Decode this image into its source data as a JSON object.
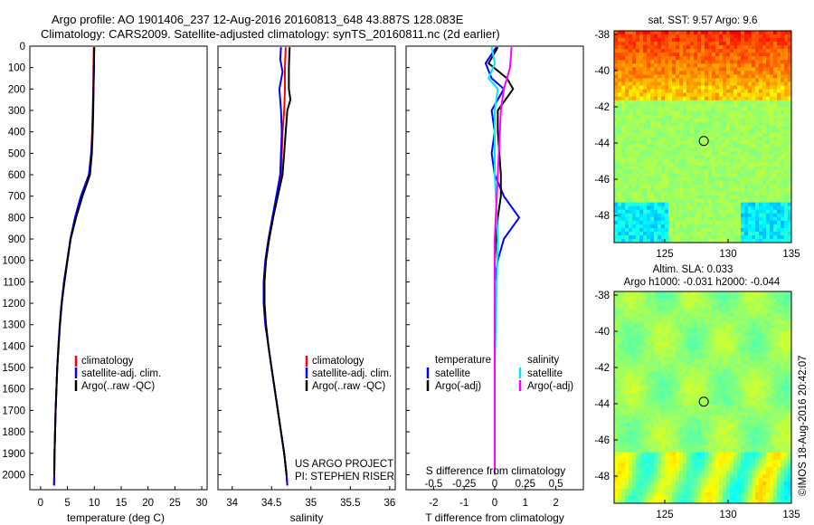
{
  "header": {
    "line1": "Argo profile: AO 1901406_237 12-Aug-2016 20160813_648 43.887S 128.083E",
    "line2": "Climatology: CARS2009. Satellite-adjusted climatology: synTS_20160811.nc (2d earlier)"
  },
  "colors": {
    "climatology": "#ff0000",
    "satellite": "#0000ff",
    "argo": "#000000",
    "sal_satellite": "#00e6ff",
    "sal_argo": "#ff00ff"
  },
  "chart_data": [
    {
      "id": "temperature",
      "type": "line",
      "xlabel": "temperature (deg C)",
      "xticks": [
        0,
        5,
        10,
        15,
        20,
        25,
        30
      ],
      "xlim": [
        -2,
        31
      ],
      "ylim": [
        2070,
        0
      ],
      "yticks": [
        0,
        100,
        200,
        300,
        400,
        500,
        600,
        700,
        800,
        900,
        1000,
        1100,
        1200,
        1300,
        1400,
        1500,
        1600,
        1700,
        1800,
        1900,
        2000
      ],
      "legend": [
        "climatology",
        "satellite-adj. clim.",
        "Argo(..raw -QC)"
      ],
      "series": [
        {
          "key": "climatology",
          "color_key": "climatology",
          "points": [
            [
              9.9,
              5
            ],
            [
              9.85,
              100
            ],
            [
              9.8,
              200
            ],
            [
              9.7,
              300
            ],
            [
              9.6,
              400
            ],
            [
              9.4,
              500
            ],
            [
              9.0,
              600
            ],
            [
              7.6,
              700
            ],
            [
              6.5,
              800
            ],
            [
              5.6,
              900
            ],
            [
              5.0,
              1000
            ],
            [
              4.4,
              1100
            ],
            [
              3.95,
              1200
            ],
            [
              3.6,
              1300
            ],
            [
              3.35,
              1400
            ],
            [
              3.1,
              1500
            ],
            [
              2.95,
              1600
            ],
            [
              2.8,
              1700
            ],
            [
              2.7,
              1800
            ],
            [
              2.6,
              1900
            ],
            [
              2.55,
              2000
            ],
            [
              2.5,
              2050
            ]
          ]
        },
        {
          "key": "satellite",
          "color_key": "satellite",
          "points": [
            [
              9.95,
              5
            ],
            [
              9.95,
              100
            ],
            [
              9.85,
              200
            ],
            [
              9.75,
              300
            ],
            [
              9.65,
              400
            ],
            [
              9.45,
              500
            ],
            [
              9.0,
              600
            ],
            [
              7.5,
              700
            ],
            [
              6.4,
              800
            ],
            [
              5.55,
              900
            ],
            [
              4.95,
              1000
            ],
            [
              4.35,
              1100
            ],
            [
              3.9,
              1200
            ],
            [
              3.55,
              1300
            ],
            [
              3.3,
              1400
            ],
            [
              3.1,
              1500
            ],
            [
              2.95,
              1600
            ],
            [
              2.8,
              1700
            ],
            [
              2.7,
              1800
            ],
            [
              2.6,
              1900
            ],
            [
              2.55,
              2000
            ],
            [
              2.5,
              2050
            ]
          ]
        },
        {
          "key": "argo",
          "color_key": "argo",
          "points": [
            [
              10.0,
              5
            ],
            [
              9.9,
              100
            ],
            [
              9.85,
              200
            ],
            [
              9.8,
              300
            ],
            [
              9.7,
              400
            ],
            [
              9.55,
              500
            ],
            [
              9.2,
              600
            ],
            [
              7.8,
              700
            ],
            [
              6.6,
              800
            ],
            [
              5.6,
              900
            ],
            [
              5.0,
              1000
            ],
            [
              4.45,
              1100
            ],
            [
              3.95,
              1200
            ],
            [
              3.6,
              1300
            ],
            [
              3.35,
              1400
            ],
            [
              3.1,
              1500
            ],
            [
              2.95,
              1600
            ],
            [
              2.8,
              1700
            ],
            [
              2.7,
              1800
            ],
            [
              2.6,
              1900
            ],
            [
              2.55,
              2000
            ]
          ]
        }
      ]
    },
    {
      "id": "salinity",
      "type": "line",
      "xlabel": "salinity",
      "xticks": [
        34,
        34.5,
        35,
        35.5,
        36
      ],
      "xlim": [
        33.82,
        36.07
      ],
      "ylim": [
        2070,
        0
      ],
      "legend": [
        "climatology",
        "satellite-adj. clim.",
        "Argo(..raw -QC)"
      ],
      "annotation": [
        "US ARGO PROJECT",
        "PI: STEPHEN RISER"
      ],
      "series": [
        {
          "key": "climatology",
          "color_key": "climatology",
          "points": [
            [
              34.68,
              5
            ],
            [
              34.67,
              100
            ],
            [
              34.67,
              200
            ],
            [
              34.66,
              300
            ],
            [
              34.64,
              400
            ],
            [
              34.63,
              500
            ],
            [
              34.62,
              600
            ],
            [
              34.57,
              700
            ],
            [
              34.52,
              800
            ],
            [
              34.47,
              900
            ],
            [
              34.43,
              1000
            ],
            [
              34.41,
              1100
            ],
            [
              34.41,
              1200
            ],
            [
              34.43,
              1300
            ],
            [
              34.46,
              1400
            ],
            [
              34.5,
              1500
            ],
            [
              34.54,
              1600
            ],
            [
              34.58,
              1700
            ],
            [
              34.62,
              1800
            ],
            [
              34.66,
              1900
            ],
            [
              34.69,
              2000
            ],
            [
              34.7,
              2050
            ]
          ]
        },
        {
          "key": "satellite",
          "color_key": "satellite",
          "points": [
            [
              34.62,
              5
            ],
            [
              34.61,
              60
            ],
            [
              34.64,
              120
            ],
            [
              34.6,
              200
            ],
            [
              34.62,
              300
            ],
            [
              34.63,
              400
            ],
            [
              34.62,
              500
            ],
            [
              34.61,
              600
            ],
            [
              34.56,
              700
            ],
            [
              34.51,
              800
            ],
            [
              34.46,
              900
            ],
            [
              34.42,
              1000
            ],
            [
              34.4,
              1100
            ],
            [
              34.4,
              1200
            ],
            [
              34.42,
              1300
            ],
            [
              34.46,
              1400
            ],
            [
              34.5,
              1500
            ],
            [
              34.54,
              1600
            ],
            [
              34.58,
              1700
            ],
            [
              34.62,
              1800
            ],
            [
              34.66,
              1900
            ],
            [
              34.69,
              2000
            ],
            [
              34.7,
              2050
            ]
          ]
        },
        {
          "key": "argo",
          "color_key": "argo",
          "points": [
            [
              34.73,
              5
            ],
            [
              34.72,
              100
            ],
            [
              34.72,
              200
            ],
            [
              34.74,
              250
            ],
            [
              34.7,
              300
            ],
            [
              34.68,
              400
            ],
            [
              34.66,
              500
            ],
            [
              34.64,
              600
            ],
            [
              34.58,
              700
            ],
            [
              34.52,
              800
            ],
            [
              34.47,
              900
            ],
            [
              34.43,
              1000
            ],
            [
              34.41,
              1100
            ],
            [
              34.41,
              1200
            ],
            [
              34.43,
              1300
            ],
            [
              34.46,
              1400
            ],
            [
              34.5,
              1500
            ],
            [
              34.54,
              1600
            ],
            [
              34.58,
              1700
            ],
            [
              34.62,
              1800
            ],
            [
              34.66,
              1900
            ],
            [
              34.69,
              2000
            ]
          ]
        }
      ]
    },
    {
      "id": "difference",
      "type": "line",
      "xlabel": "T difference from climatology",
      "xlabel_top": "S difference from climatology",
      "xticks": [
        -2,
        -1,
        0,
        1,
        2
      ],
      "xticks_top": [
        "-0.5",
        "-0.25",
        "0",
        "0.25",
        "0.5"
      ],
      "xlim": [
        -2.9,
        2.9
      ],
      "ylim": [
        2070,
        0
      ],
      "legend_temp_title": "temperature",
      "legend_sal_title": "salinity",
      "legend_temp": [
        "satellite",
        "Argo(-adj)"
      ],
      "legend_sal": [
        "satellite",
        "Argo(-adj)"
      ],
      "series": [
        {
          "key": "t_satellite",
          "color_key": "satellite",
          "points": [
            [
              0.05,
              5
            ],
            [
              -0.3,
              80
            ],
            [
              -0.1,
              150
            ],
            [
              0.3,
              200
            ],
            [
              -0.1,
              300
            ],
            [
              0.0,
              400
            ],
            [
              -0.1,
              500
            ],
            [
              0.0,
              600
            ],
            [
              0.3,
              700
            ],
            [
              0.8,
              800
            ],
            [
              0.3,
              900
            ],
            [
              0.1,
              1000
            ],
            [
              0.0,
              1100
            ],
            [
              0.0,
              1200
            ],
            [
              0.0,
              1500
            ],
            [
              0.0,
              2000
            ]
          ]
        },
        {
          "key": "t_argo",
          "color_key": "argo",
          "points": [
            [
              0.1,
              5
            ],
            [
              -0.2,
              80
            ],
            [
              0.4,
              150
            ],
            [
              0.6,
              200
            ],
            [
              0.1,
              300
            ],
            [
              0.1,
              400
            ],
            [
              0.15,
              500
            ],
            [
              0.2,
              600
            ],
            [
              0.2,
              700
            ],
            [
              0.1,
              800
            ],
            [
              0.05,
              900
            ],
            [
              0.0,
              1000
            ],
            [
              0.0,
              1200
            ],
            [
              0.0,
              1500
            ],
            [
              0.0,
              2000
            ]
          ]
        },
        {
          "key": "s_satellite",
          "color_key": "sal_satellite",
          "points": [
            [
              -0.1,
              5
            ],
            [
              0.0,
              80
            ],
            [
              -0.2,
              150
            ],
            [
              0.1,
              200
            ],
            [
              0.0,
              300
            ],
            [
              0.0,
              600
            ],
            [
              0.1,
              900
            ],
            [
              0.05,
              1200
            ],
            [
              0.0,
              1500
            ],
            [
              0.0,
              2000
            ]
          ]
        },
        {
          "key": "s_argo",
          "color_key": "sal_argo",
          "points": [
            [
              0.55,
              5
            ],
            [
              0.5,
              100
            ],
            [
              0.3,
              200
            ],
            [
              0.2,
              300
            ],
            [
              0.1,
              600
            ],
            [
              0.0,
              900
            ],
            [
              0.0,
              1200
            ],
            [
              0.0,
              1500
            ],
            [
              0.0,
              2000
            ]
          ]
        }
      ]
    },
    {
      "id": "sst_map",
      "type": "heatmap",
      "title": "sat. SST: 9.57 Argo: 9.6",
      "xticks": [
        125,
        130,
        135
      ],
      "yticks": [
        -38,
        -40,
        -42,
        -44,
        -46,
        -48
      ],
      "xlim": [
        121,
        135
      ],
      "ylim": [
        -49.5,
        -37.8
      ],
      "marker": [
        128.083,
        -43.887
      ]
    },
    {
      "id": "sla_map",
      "type": "heatmap",
      "title": "Altim. SLA: 0.033",
      "subtitle": "Argo h1000: -0.031 h2000: -0.044",
      "xticks": [
        125,
        130,
        135
      ],
      "yticks": [
        -38,
        -40,
        -42,
        -44,
        -46,
        -48
      ],
      "xlim": [
        121,
        135
      ],
      "ylim": [
        -49.5,
        -37.8
      ],
      "marker": [
        128.083,
        -43.887
      ],
      "stamp": "©IMOS 18-Aug-2016 20:42:07"
    }
  ]
}
